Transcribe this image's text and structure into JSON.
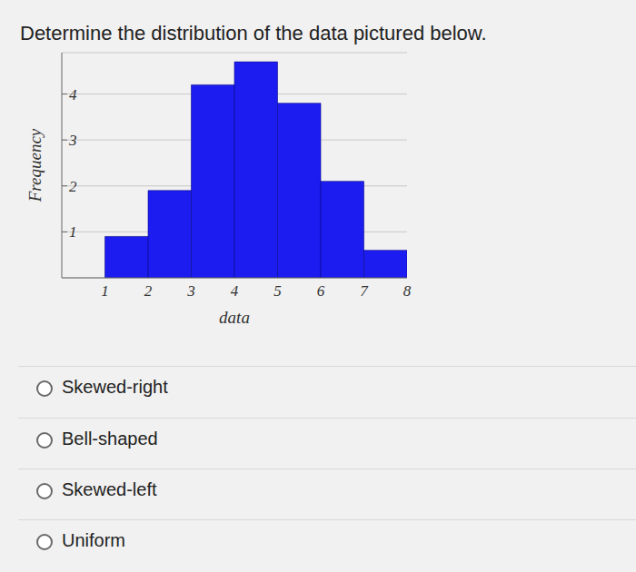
{
  "question": "Determine the distribution of the data pictured below.",
  "chart_data": {
    "type": "histogram",
    "bins": [
      1,
      2,
      3,
      4,
      5,
      6,
      7,
      8
    ],
    "values": [
      0.9,
      1.9,
      4.2,
      4.7,
      3.8,
      2.1,
      0.6
    ],
    "color": "#1c1cf0",
    "xlabel": "data",
    "ylabel": "Frequency",
    "xlim": [
      0,
      8
    ],
    "xticks": [
      1,
      2,
      3,
      4,
      5,
      6,
      7,
      8
    ],
    "ylim": [
      0,
      4.9
    ],
    "yticks": [
      1,
      2,
      3,
      4
    ],
    "grid": true
  },
  "options": [
    "Skewed-right",
    "Bell-shaped",
    "Skewed-left",
    "Uniform"
  ]
}
